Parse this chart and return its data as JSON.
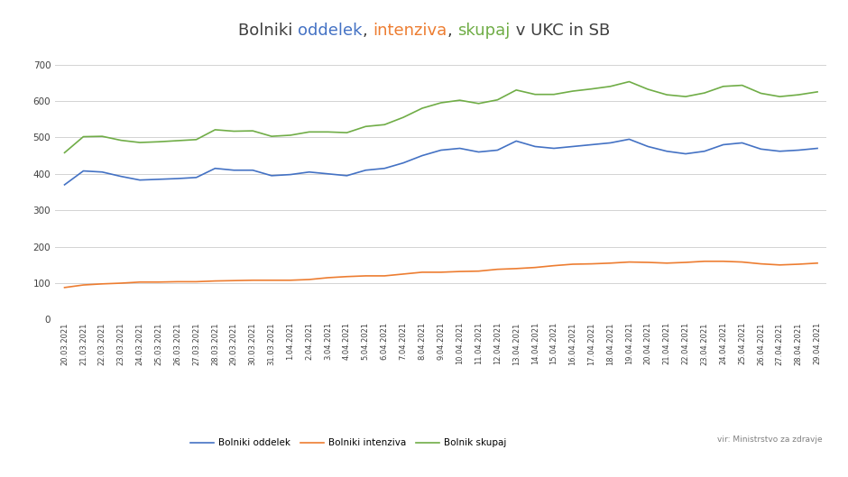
{
  "title_parts": [
    {
      "text": "Bolniki ",
      "color": "#404040"
    },
    {
      "text": "oddelek",
      "color": "#4472c4"
    },
    {
      "text": ", ",
      "color": "#404040"
    },
    {
      "text": "intenziva",
      "color": "#ed7d31"
    },
    {
      "text": ", ",
      "color": "#404040"
    },
    {
      "text": "skupaj",
      "color": "#70ad47"
    },
    {
      "text": " v UKC in SB",
      "color": "#404040"
    }
  ],
  "dates": [
    "20.03.2021",
    "21.03.2021",
    "22.03.2021",
    "23.03.2021",
    "24.03.2021",
    "25.03.2021",
    "26.03.2021",
    "27.03.2021",
    "28.03.2021",
    "29.03.2021",
    "30.03.2021",
    "31.03.2021",
    "1.04.2021",
    "2.04.2021",
    "3.04.2021",
    "4.04.2021",
    "5.04.2021",
    "6.04.2021",
    "7.04.2021",
    "8.04.2021",
    "9.04.2021",
    "10.04.2021",
    "11.04.2021",
    "12.04.2021",
    "13.04.2021",
    "14.04.2021",
    "15.04.2021",
    "16.04.2021",
    "17.04.2021",
    "18.04.2021",
    "19.04.2021",
    "20.04.2021",
    "21.04.2021",
    "22.04.2021",
    "23.04.2021",
    "24.04.2021",
    "25.04.2021",
    "26.04.2021",
    "27.04.2021",
    "28.04.2021",
    "29.04.2021"
  ],
  "oddelek": [
    370,
    408,
    405,
    393,
    383,
    385,
    387,
    390,
    415,
    410,
    410,
    395,
    398,
    405,
    400,
    395,
    410,
    415,
    430,
    450,
    465,
    470,
    460,
    465,
    490,
    475,
    470,
    475,
    480,
    485,
    495,
    475,
    462,
    455,
    462,
    480,
    485,
    468,
    462,
    465,
    470
  ],
  "intenziva": [
    88,
    95,
    98,
    100,
    103,
    103,
    104,
    104,
    106,
    107,
    108,
    108,
    108,
    110,
    115,
    118,
    120,
    120,
    125,
    130,
    130,
    132,
    133,
    138,
    140,
    143,
    148,
    152,
    153,
    155,
    158,
    157,
    155,
    157,
    160,
    160,
    158,
    153,
    150,
    152,
    155
  ],
  "skupaj": [
    458,
    502,
    503,
    492,
    486,
    488,
    491,
    494,
    521,
    517,
    518,
    503,
    506,
    515,
    515,
    513,
    530,
    535,
    555,
    580,
    595,
    602,
    593,
    603,
    630,
    618,
    618,
    627,
    633,
    640,
    653,
    632,
    617,
    612,
    622,
    640,
    643,
    621,
    612,
    617,
    625
  ],
  "oddelek_color": "#4472c4",
  "intenziva_color": "#ed7d31",
  "skupaj_color": "#70ad47",
  "yticks": [
    0,
    100,
    200,
    300,
    400,
    500,
    600,
    700
  ],
  "ylim": [
    0,
    720
  ],
  "background_color": "#ffffff",
  "grid_color": "#d3d3d3",
  "source_text": "vir: Ministrstvo za zdravje",
  "legend_labels": [
    "Bolniki oddelek",
    "Bolniki intenziva",
    "Bolnik skupaj"
  ],
  "title_fontsize": 13,
  "tick_fontsize": 6.0,
  "ytick_fontsize": 7.5,
  "legend_fontsize": 7.5
}
